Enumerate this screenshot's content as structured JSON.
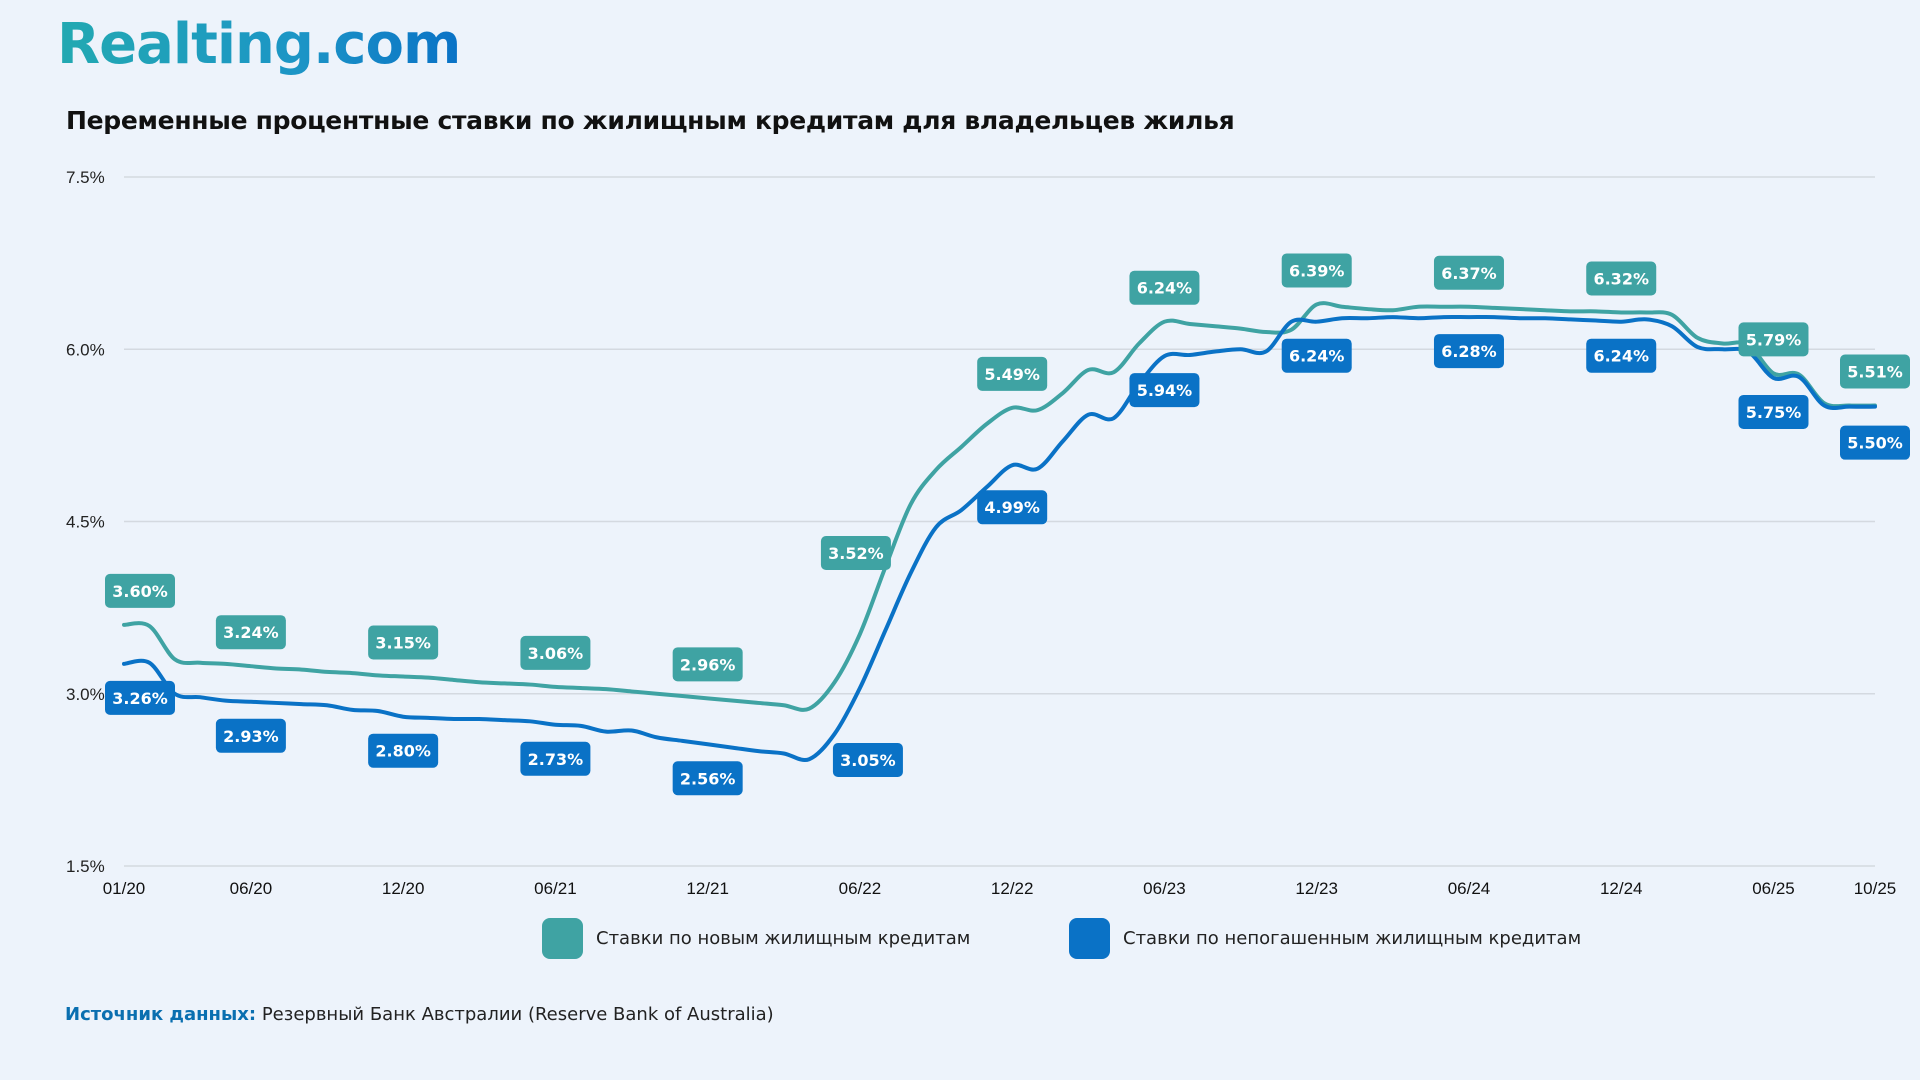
{
  "logo": "Realting.com",
  "colors": {
    "new": "#3fa3a3",
    "outstanding": "#0a72c6",
    "grid": "#d4d9e0",
    "background": "#edf3fb"
  },
  "legend": [
    {
      "label": "Ставки по новым жилищным кредитам",
      "color": "#3fa3a3"
    },
    {
      "label": "Ставки по непогашенным жилищным кредитам",
      "color": "#0a72c6"
    }
  ],
  "source": {
    "label": "Источник данных:",
    "text": "Резервный Банк Австралии (Reserve Bank of Australia)"
  },
  "chart_data": {
    "type": "line",
    "title": "Переменные процентные ставки по жилищным кредитам для владельцев жилья",
    "xlabel": "",
    "ylabel": "",
    "ylim": [
      1.5,
      7.5
    ],
    "yticks": [
      "1.5%",
      "3.0%",
      "4.5%",
      "6.0%",
      "7.5%"
    ],
    "ytick_values": [
      1.5,
      3.0,
      4.5,
      6.0,
      7.5
    ],
    "xlim_months": [
      0,
      69
    ],
    "xticks": [
      {
        "label": "01/20",
        "month": 0
      },
      {
        "label": "06/20",
        "month": 5
      },
      {
        "label": "12/20",
        "month": 11
      },
      {
        "label": "06/21",
        "month": 17
      },
      {
        "label": "12/21",
        "month": 23
      },
      {
        "label": "06/22",
        "month": 29
      },
      {
        "label": "12/22",
        "month": 35
      },
      {
        "label": "06/23",
        "month": 41
      },
      {
        "label": "12/23",
        "month": 47
      },
      {
        "label": "06/24",
        "month": 53
      },
      {
        "label": "12/24",
        "month": 59
      },
      {
        "label": "06/25",
        "month": 65
      },
      {
        "label": "10/25",
        "month": 69
      }
    ],
    "grid": true,
    "legend_position": "bottom",
    "series": [
      {
        "name": "Ставки по новым жилищным кредитам",
        "color": "#3fa3a3",
        "points": [
          [
            0,
            3.6
          ],
          [
            1,
            3.59
          ],
          [
            2,
            3.3
          ],
          [
            3,
            3.27
          ],
          [
            4,
            3.26
          ],
          [
            5,
            3.24
          ],
          [
            6,
            3.22
          ],
          [
            7,
            3.21
          ],
          [
            8,
            3.19
          ],
          [
            9,
            3.18
          ],
          [
            10,
            3.16
          ],
          [
            11,
            3.15
          ],
          [
            12,
            3.14
          ],
          [
            13,
            3.12
          ],
          [
            14,
            3.1
          ],
          [
            15,
            3.09
          ],
          [
            16,
            3.08
          ],
          [
            17,
            3.06
          ],
          [
            18,
            3.05
          ],
          [
            19,
            3.04
          ],
          [
            20,
            3.02
          ],
          [
            21,
            3.0
          ],
          [
            22,
            2.98
          ],
          [
            23,
            2.96
          ],
          [
            24,
            2.94
          ],
          [
            25,
            2.92
          ],
          [
            26,
            2.9
          ],
          [
            27,
            2.87
          ],
          [
            28,
            3.1
          ],
          [
            29,
            3.52
          ],
          [
            30,
            4.1
          ],
          [
            31,
            4.65
          ],
          [
            32,
            4.95
          ],
          [
            33,
            5.15
          ],
          [
            34,
            5.35
          ],
          [
            35,
            5.49
          ],
          [
            36,
            5.47
          ],
          [
            37,
            5.62
          ],
          [
            38,
            5.82
          ],
          [
            39,
            5.8
          ],
          [
            40,
            6.05
          ],
          [
            41,
            6.24
          ],
          [
            42,
            6.22
          ],
          [
            43,
            6.2
          ],
          [
            44,
            6.18
          ],
          [
            45,
            6.15
          ],
          [
            46,
            6.17
          ],
          [
            47,
            6.39
          ],
          [
            48,
            6.37
          ],
          [
            49,
            6.35
          ],
          [
            50,
            6.34
          ],
          [
            51,
            6.37
          ],
          [
            52,
            6.37
          ],
          [
            53,
            6.37
          ],
          [
            54,
            6.36
          ],
          [
            55,
            6.35
          ],
          [
            56,
            6.34
          ],
          [
            57,
            6.33
          ],
          [
            58,
            6.33
          ],
          [
            59,
            6.32
          ],
          [
            60,
            6.32
          ],
          [
            61,
            6.3
          ],
          [
            62,
            6.1
          ],
          [
            63,
            6.05
          ],
          [
            64,
            6.04
          ],
          [
            65,
            5.79
          ],
          [
            66,
            5.78
          ],
          [
            67,
            5.53
          ],
          [
            68,
            5.51
          ],
          [
            69,
            5.51
          ]
        ],
        "labels": [
          {
            "month": 0,
            "value": "3.60%"
          },
          {
            "month": 5,
            "value": "3.24%"
          },
          {
            "month": 11,
            "value": "3.15%"
          },
          {
            "month": 17,
            "value": "3.06%"
          },
          {
            "month": 23,
            "value": "2.96%"
          },
          {
            "month": 29,
            "value": "3.52%"
          },
          {
            "month": 35,
            "value": "5.49%"
          },
          {
            "month": 41,
            "value": "6.24%"
          },
          {
            "month": 47,
            "value": "6.39%"
          },
          {
            "month": 53,
            "value": "6.37%"
          },
          {
            "month": 59,
            "value": "6.32%"
          },
          {
            "month": 65,
            "value": "5.79%"
          },
          {
            "month": 69,
            "value": "5.51%"
          }
        ]
      },
      {
        "name": "Ставки по непогашенным жилищным кредитам",
        "color": "#0a72c6",
        "points": [
          [
            0,
            3.26
          ],
          [
            1,
            3.27
          ],
          [
            2,
            3.0
          ],
          [
            3,
            2.97
          ],
          [
            4,
            2.94
          ],
          [
            5,
            2.93
          ],
          [
            6,
            2.92
          ],
          [
            7,
            2.91
          ],
          [
            8,
            2.9
          ],
          [
            9,
            2.86
          ],
          [
            10,
            2.85
          ],
          [
            11,
            2.8
          ],
          [
            12,
            2.79
          ],
          [
            13,
            2.78
          ],
          [
            14,
            2.78
          ],
          [
            15,
            2.77
          ],
          [
            16,
            2.76
          ],
          [
            17,
            2.73
          ],
          [
            18,
            2.72
          ],
          [
            19,
            2.67
          ],
          [
            20,
            2.68
          ],
          [
            21,
            2.62
          ],
          [
            22,
            2.59
          ],
          [
            23,
            2.56
          ],
          [
            24,
            2.53
          ],
          [
            25,
            2.5
          ],
          [
            26,
            2.48
          ],
          [
            27,
            2.43
          ],
          [
            28,
            2.65
          ],
          [
            29,
            3.05
          ],
          [
            30,
            3.55
          ],
          [
            31,
            4.05
          ],
          [
            32,
            4.45
          ],
          [
            33,
            4.6
          ],
          [
            34,
            4.8
          ],
          [
            35,
            4.99
          ],
          [
            36,
            4.96
          ],
          [
            37,
            5.2
          ],
          [
            38,
            5.43
          ],
          [
            39,
            5.4
          ],
          [
            40,
            5.7
          ],
          [
            41,
            5.94
          ],
          [
            42,
            5.95
          ],
          [
            43,
            5.98
          ],
          [
            44,
            6.0
          ],
          [
            45,
            5.98
          ],
          [
            46,
            6.24
          ],
          [
            47,
            6.24
          ],
          [
            48,
            6.27
          ],
          [
            49,
            6.27
          ],
          [
            50,
            6.28
          ],
          [
            51,
            6.27
          ],
          [
            52,
            6.28
          ],
          [
            53,
            6.28
          ],
          [
            54,
            6.28
          ],
          [
            55,
            6.27
          ],
          [
            56,
            6.27
          ],
          [
            57,
            6.26
          ],
          [
            58,
            6.25
          ],
          [
            59,
            6.24
          ],
          [
            60,
            6.26
          ],
          [
            61,
            6.2
          ],
          [
            62,
            6.02
          ],
          [
            63,
            6.0
          ],
          [
            64,
            5.98
          ],
          [
            65,
            5.75
          ],
          [
            66,
            5.76
          ],
          [
            67,
            5.51
          ],
          [
            68,
            5.5
          ],
          [
            69,
            5.5
          ]
        ],
        "labels": [
          {
            "month": 0,
            "value": "3.26%"
          },
          {
            "month": 5,
            "value": "2.93%"
          },
          {
            "month": 11,
            "value": "2.80%"
          },
          {
            "month": 17,
            "value": "2.73%"
          },
          {
            "month": 23,
            "value": "2.56%"
          },
          {
            "month": 29,
            "value": "3.05%"
          },
          {
            "month": 35,
            "value": "4.99%"
          },
          {
            "month": 41,
            "value": "5.94%"
          },
          {
            "month": 47,
            "value": "6.24%"
          },
          {
            "month": 53,
            "value": "6.28%"
          },
          {
            "month": 59,
            "value": "6.24%"
          },
          {
            "month": 65,
            "value": "5.75%"
          },
          {
            "month": 69,
            "value": "5.50%"
          }
        ]
      }
    ]
  }
}
